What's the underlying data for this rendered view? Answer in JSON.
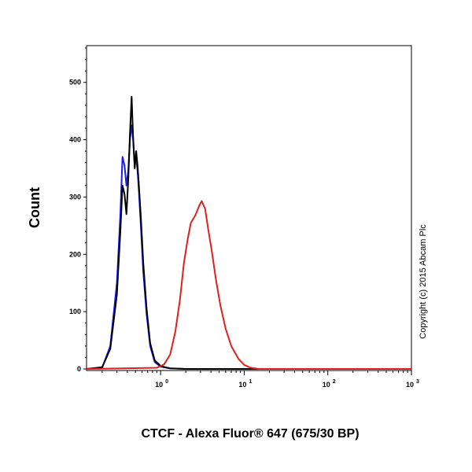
{
  "chart_data": {
    "type": "line",
    "title": "",
    "xlabel": "CTCF - Alexa Fluor® 647 (675/30 BP)",
    "ylabel": "Count",
    "x_scale": "log",
    "xlim": [
      0.13,
      1000
    ],
    "ylim": [
      0,
      560
    ],
    "x_ticks": [
      {
        "base": "10",
        "exp": "0",
        "value": 1
      },
      {
        "base": "10",
        "exp": "1",
        "value": 10
      },
      {
        "base": "10",
        "exp": "2",
        "value": 100
      },
      {
        "base": "10",
        "exp": "3",
        "value": 1000
      }
    ],
    "y_ticks": [
      0,
      100,
      200,
      300,
      400,
      500
    ],
    "grid": false,
    "copyright": "Copyright (c) 2015 Abcam Plc",
    "series": [
      {
        "color": "#1a1aff",
        "x": [
          0.13,
          0.2,
          0.25,
          0.3,
          0.33,
          0.35,
          0.37,
          0.39,
          0.41,
          0.43,
          0.45,
          0.47,
          0.49,
          0.51,
          0.53,
          0.55,
          0.58,
          0.62,
          0.68,
          0.75,
          0.85,
          1.0,
          1.3,
          2.0,
          1000
        ],
        "y": [
          0,
          2,
          40,
          150,
          270,
          370,
          355,
          320,
          345,
          400,
          425,
          400,
          355,
          370,
          345,
          310,
          250,
          170,
          95,
          40,
          12,
          4,
          1,
          0,
          0
        ]
      },
      {
        "color": "#000000",
        "x": [
          0.13,
          0.2,
          0.25,
          0.3,
          0.33,
          0.35,
          0.37,
          0.39,
          0.41,
          0.43,
          0.45,
          0.47,
          0.49,
          0.51,
          0.53,
          0.55,
          0.58,
          0.62,
          0.68,
          0.75,
          0.85,
          1.0,
          1.3,
          2.0,
          1000
        ],
        "y": [
          0,
          3,
          35,
          130,
          240,
          320,
          305,
          270,
          330,
          410,
          475,
          400,
          350,
          380,
          355,
          320,
          265,
          185,
          105,
          45,
          15,
          5,
          1,
          0,
          0
        ]
      },
      {
        "color": "#e02020",
        "x": [
          0.13,
          0.9,
          1.1,
          1.3,
          1.5,
          1.7,
          1.9,
          2.1,
          2.3,
          2.6,
          2.9,
          3.1,
          3.4,
          3.7,
          4.1,
          4.6,
          5.2,
          6.0,
          7.0,
          8.5,
          10,
          12,
          15,
          1000
        ],
        "y": [
          0,
          2,
          8,
          25,
          65,
          120,
          185,
          225,
          255,
          268,
          285,
          293,
          280,
          245,
          205,
          155,
          110,
          70,
          40,
          18,
          7,
          2,
          0,
          0
        ]
      }
    ]
  }
}
